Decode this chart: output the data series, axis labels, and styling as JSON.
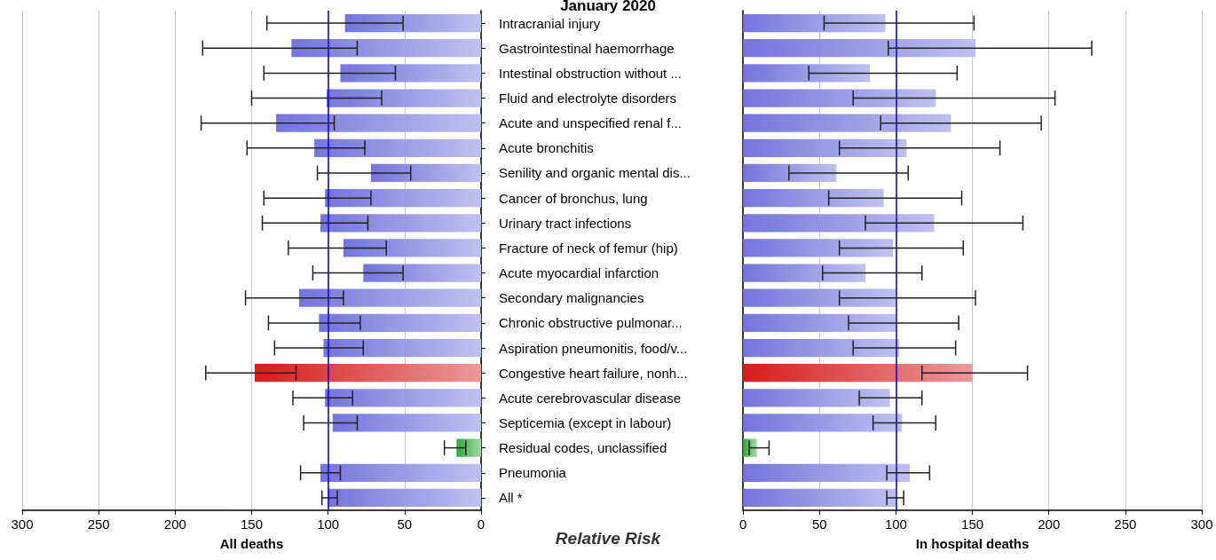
{
  "chart_data": [
    {
      "type": "bar",
      "orientation": "horizontal",
      "title": "January 2020",
      "xlabel": "All deaths",
      "annotations": [
        "Relative Risk"
      ],
      "categories": [
        "Intracranial injury",
        "Gastrointestinal haemorrhage",
        "Intestinal obstruction without ...",
        "Fluid and electrolyte disorders",
        "Acute and unspecified renal f...",
        "Acute bronchitis",
        "Senility and organic mental dis...",
        "Cancer of bronchus, lung",
        "Urinary tract infections",
        "Fracture of neck of femur (hip)",
        "Acute myocardial infarction",
        "Secondary malignancies",
        "Chronic obstructive pulmonar...",
        "Aspiration pneumonitis, food/v...",
        "Congestive heart failure, nonh...",
        "Acute cerebrovascular disease",
        "Septicemia (except in labour)",
        "Residual codes, unclassified",
        "Pneumonia",
        "All *"
      ],
      "values": [
        89,
        124,
        92,
        101,
        134,
        109,
        72,
        102,
        105,
        90,
        77,
        119,
        106,
        103,
        148,
        102,
        97,
        16,
        105,
        100
      ],
      "errors": [
        [
          51,
          140
        ],
        [
          81,
          182
        ],
        [
          56,
          142
        ],
        [
          65,
          150
        ],
        [
          96,
          183
        ],
        [
          76,
          153
        ],
        [
          46,
          107
        ],
        [
          72,
          142
        ],
        [
          74,
          143
        ],
        [
          62,
          126
        ],
        [
          51,
          110
        ],
        [
          90,
          154
        ],
        [
          79,
          139
        ],
        [
          77,
          135
        ],
        [
          121,
          180
        ],
        [
          84,
          123
        ],
        [
          81,
          116
        ],
        [
          10,
          24
        ],
        [
          92,
          118
        ],
        [
          94,
          104
        ]
      ],
      "colors": [
        "#7474dc",
        "#7474dc",
        "#7474dc",
        "#7474dc",
        "#7474dc",
        "#7474dc",
        "#7474dc",
        "#7474dc",
        "#7474dc",
        "#7474dc",
        "#7474dc",
        "#7474dc",
        "#7474dc",
        "#7474dc",
        "#d41c1c",
        "#7474dc",
        "#7474dc",
        "#2eaa3a",
        "#7474dc",
        "#7474dc"
      ],
      "xlim": [
        300,
        0
      ],
      "xticks": [
        0,
        50,
        100,
        150,
        200,
        250,
        300
      ],
      "grid": "x",
      "ref_lines": [
        {
          "axis": "x",
          "value": 100,
          "color": "#0000ff"
        }
      ]
    },
    {
      "type": "bar",
      "orientation": "horizontal",
      "xlabel": "In hospital deaths",
      "categories": [
        null,
        null,
        null,
        null,
        null,
        null,
        null,
        null,
        null,
        null,
        null,
        null,
        null,
        null,
        null,
        null,
        null,
        null,
        null,
        null
      ],
      "tick_labels": "x",
      "values": [
        93,
        152,
        83,
        126,
        136,
        107,
        61,
        92,
        125,
        98,
        80,
        100,
        100,
        102,
        150,
        96,
        104,
        9,
        109,
        100
      ],
      "errors": [
        [
          53,
          151
        ],
        [
          95,
          228
        ],
        [
          43,
          140
        ],
        [
          72,
          204
        ],
        [
          90,
          195
        ],
        [
          63,
          168
        ],
        [
          30,
          108
        ],
        [
          56,
          143
        ],
        [
          80,
          183
        ],
        [
          63,
          144
        ],
        [
          52,
          117
        ],
        [
          63,
          152
        ],
        [
          69,
          141
        ],
        [
          72,
          139
        ],
        [
          117,
          186
        ],
        [
          76,
          117
        ],
        [
          85,
          126
        ],
        [
          4,
          17
        ],
        [
          94,
          122
        ],
        [
          94,
          105
        ]
      ],
      "colors": [
        "#7474dc",
        "#7474dc",
        "#7474dc",
        "#7474dc",
        "#7474dc",
        "#7474dc",
        "#7474dc",
        "#7474dc",
        "#7474dc",
        "#7474dc",
        "#7474dc",
        "#7474dc",
        "#7474dc",
        "#7474dc",
        "#d41c1c",
        "#7474dc",
        "#7474dc",
        "#2eaa3a",
        "#7474dc",
        "#7474dc"
      ],
      "xlim": [
        0,
        300
      ],
      "xticks": [
        0,
        50,
        100,
        150,
        200,
        250,
        300
      ],
      "grid": "x",
      "ref_lines": [
        {
          "axis": "x",
          "value": 100,
          "color": "#0000ff"
        }
      ]
    }
  ]
}
